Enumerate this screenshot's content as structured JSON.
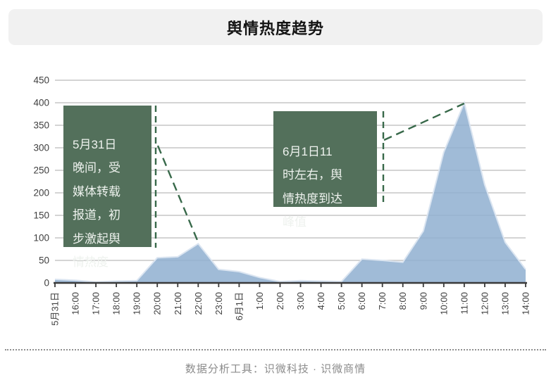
{
  "title": "舆情热度趋势",
  "annotations": [
    {
      "lines": [
        "5月31日",
        "晚间，受",
        "媒体转载",
        "报道，初",
        "步激起舆",
        "情热度"
      ]
    },
    {
      "lines": [
        "6月1日11",
        "时左右，舆",
        "情热度到达",
        "峰值"
      ]
    }
  ],
  "footer": {
    "credit": "数据分析工具：识微科技 · 识微商情"
  },
  "colors": {
    "area_fill": "#8fafd0",
    "area_stroke": "#dbe5f1",
    "grid": "#c6c6c6",
    "axis": "#3a3a3a",
    "tick_label": "#3f3f3f",
    "annotation_bg": "#53705b",
    "annotation_text": "#eef2ee",
    "callout": "#38694a",
    "banner_bg": "#f1f1f1",
    "footer_text": "#8c8c8c"
  },
  "chart_data": {
    "type": "area",
    "title": "舆情热度趋势",
    "categories": [
      "5月31日",
      "16:00",
      "17:00",
      "18:00",
      "19:00",
      "20:00",
      "21:00",
      "22:00",
      "23:00",
      "6月1日",
      "1:00",
      "2:00",
      "3:00",
      "4:00",
      "5:00",
      "6:00",
      "7:00",
      "8:00",
      "9:00",
      "10:00",
      "11:00",
      "12:00",
      "13:00",
      "14:00"
    ],
    "values": [
      8,
      6,
      2,
      4,
      5,
      56,
      58,
      87,
      30,
      25,
      12,
      3,
      5,
      4,
      3,
      53,
      50,
      46,
      115,
      290,
      400,
      218,
      90,
      30
    ],
    "xlabel": "",
    "ylabel": "",
    "ylim": [
      0,
      450
    ],
    "ytick_interval": 50,
    "grid": "horizontal",
    "legend": "none",
    "x_tick_rotation": -90,
    "annotations": [
      {
        "text": "5月31日晚间，受媒体转载报道，初步激起舆情热度",
        "points_to_category": "22:00",
        "points_to_value": 87
      },
      {
        "text": "6月1日11时左右，舆情热度到达峰值",
        "points_to_category": "11:00",
        "points_to_value": 400
      }
    ]
  }
}
